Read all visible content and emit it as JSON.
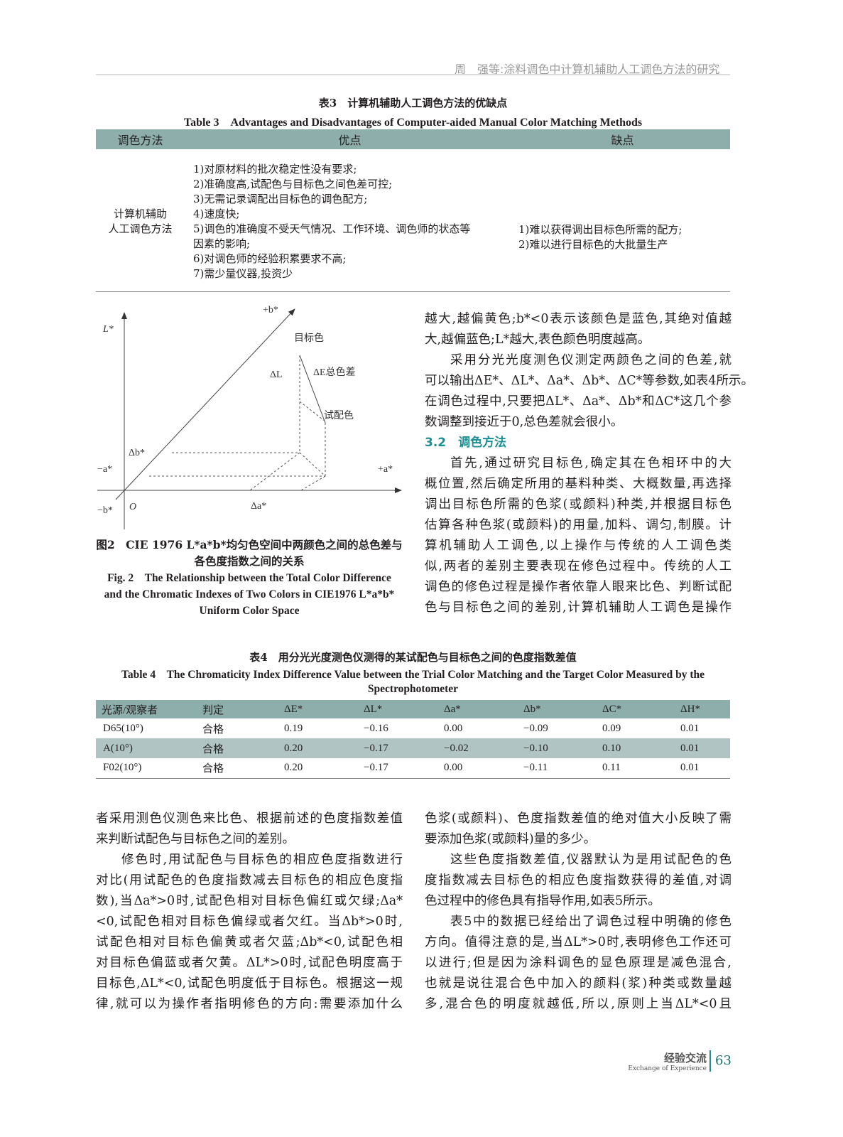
{
  "running_header": "周　强等:涂料调色中计算机辅助人工调色方法的研究",
  "table3": {
    "caption_zh": "表3　计算机辅助人工调色方法的优缺点",
    "caption_en": "Table 3　Advantages and Disadvantages of Computer-aided Manual Color Matching Methods",
    "headers": [
      "调色方法",
      "优点",
      "缺点"
    ],
    "method": [
      "计算机辅助",
      "人工调色方法"
    ],
    "advantages": [
      "1)对原材料的批次稳定性没有要求;",
      "2)准确度高,试配色与目标色之间色差可控;",
      "3)无需记录调配出目标色的调色配方;",
      "4)速度快;",
      "5)调色的准确度不受天气情况、工作环境、调色师的状态等",
      "因素的影响;",
      "6)对调色师的经验积累要求不高;",
      "7)需少量仪器,投资少"
    ],
    "disadvantages": [
      "1)难以获得调出目标色所需的配方;",
      "2)难以进行目标色的大批量生产"
    ]
  },
  "figure2": {
    "labels": {
      "plus_b": "+b*",
      "L": "L*",
      "target": "目标色",
      "dL": "ΔL",
      "dE": "ΔE总色差",
      "trial": "试配色",
      "db": "Δb*",
      "minus_a": "−a*",
      "plus_a": "+a*",
      "minus_b": "−b*",
      "origin": "O",
      "da": "Δa*"
    },
    "caption_zh": [
      "图2　CIE 1976 L*a*b*均匀色空间中两颜色之间的总色差与",
      "各色度指数之间的关系"
    ],
    "caption_en": [
      "Fig. 2　The Relationship between the Total Color Difference",
      "and the Chromatic Indexes of Two Colors in CIE1976 L*a*b*",
      "Uniform Color Space"
    ]
  },
  "right_col_top": [
    "越大,越偏黄色;b*<0表示该颜色是蓝色,其绝对值越",
    "大,越偏蓝色;L*越大,表色颜色明度越高。",
    "采用分光光度测色仪测定两颜色之间的色差,就",
    "可以输出ΔE*、ΔL*、Δa*、Δb*、ΔC*等参数,如表4所示。",
    "在调色过程中,只要把ΔL*、Δa*、Δb*和ΔC*这几个参",
    "数调整到接近于0,总色差就会很小。"
  ],
  "section": "3.2　调色方法",
  "right_col_mid": [
    "首先,通过研究目标色,确定其在色相环中的大",
    "概位置,然后确定所用的基料种类、大概数量,再选择",
    "调出目标色所需的色浆(或颜料)种类,并根据目标色",
    "估算各种色浆(或颜料)的用量,加料、调匀,制膜。计",
    "算机辅助人工调色,以上操作与传统的人工调色类",
    "似,两者的差别主要表现在修色过程中。传统的人工",
    "调色的修色过程是操作者依靠人眼来比色、判断试配",
    "色与目标色之间的差别,计算机辅助人工调色是操作"
  ],
  "table4": {
    "caption_zh": "表4　用分光光度测色仪测得的某试配色与目标色之间的色度指数差值",
    "caption_en": [
      "Table 4　The Chromaticity Index Difference Value between the Trial Color Matching and the Target Color Measured by the",
      "Spectrophotometer"
    ],
    "headers": [
      "光源/观察者",
      "判定",
      "ΔE*",
      "ΔL*",
      "Δa*",
      "Δb*",
      "ΔC*",
      "ΔH*"
    ],
    "rows": [
      [
        "D65(10°)",
        "合格",
        "0.19",
        "−0.16",
        "0.00",
        "−0.09",
        "0.09",
        "0.01"
      ],
      [
        "A(10°)",
        "合格",
        "0.20",
        "−0.17",
        "−0.02",
        "−0.10",
        "0.10",
        "0.01"
      ],
      [
        "F02(10°)",
        "合格",
        "0.20",
        "−0.17",
        "0.00",
        "−0.11",
        "0.11",
        "0.01"
      ]
    ]
  },
  "left_col_bottom": [
    "者采用测色仪测色来比色、根据前述的色度指数差值",
    "来判断试配色与目标色之间的差别。",
    "修色时,用试配色与目标色的相应色度指数进行",
    "对比(用试配色的色度指数减去目标色的相应色度指",
    "数),当Δa*>0时,试配色相对目标色偏红或欠绿;Δa*",
    "<0,试配色相对目标色偏绿或者欠红。当Δb*>0时,",
    "试配色相对目标色偏黄或者欠蓝;Δb*<0,试配色相",
    "对目标色偏蓝或者欠黄。ΔL*>0时,试配色明度高于",
    "目标色,ΔL*<0,试配色明度低于目标色。根据这一规",
    "律,就可以为操作者指明修色的方向:需要添加什么"
  ],
  "right_col_bottom": [
    "色浆(或颜料)、色度指数差值的绝对值大小反映了需",
    "要添加色浆(或颜料)量的多少。",
    "这些色度指数差值,仪器默认为是用试配色的色",
    "度指数减去目标色的相应色度指数获得的差值,对调",
    "色过程中的修色具有指导作用,如表5所示。",
    "表5中的数据已经给出了调色过程中明确的修色",
    "方向。值得注意的是,当ΔL*>0时,表明修色工作还可",
    "以进行;但是因为涂料调色的显色原理是减色混合,",
    "也就是说往混合色中加入的颜料(浆)种类或数量越",
    "多,混合色的明度就越低,所以,原则上当ΔL*<0且"
  ],
  "footer": {
    "section_zh": "经验交流",
    "section_en": "Exchange of Experience",
    "page": "63"
  }
}
